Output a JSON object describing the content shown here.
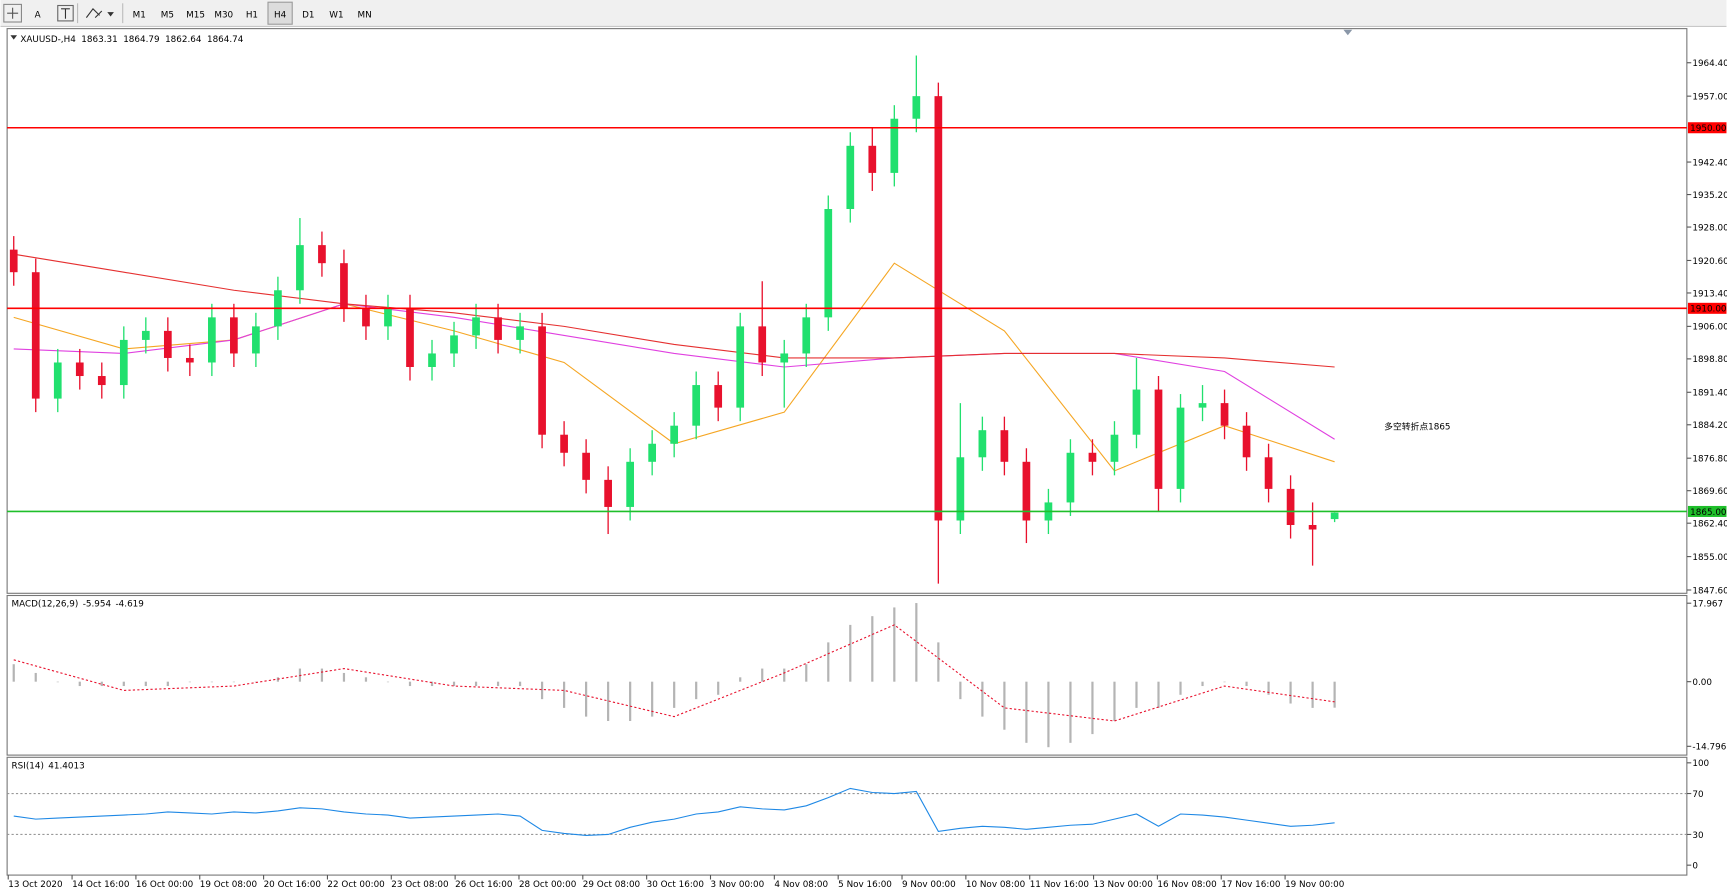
{
  "toolbar": {
    "tools": [
      "A"
    ],
    "timeframes": [
      "M1",
      "M5",
      "M15",
      "M30",
      "H1",
      "H4",
      "D1",
      "W1",
      "MN"
    ],
    "active": "H4"
  },
  "chart_data": [
    {
      "type": "candlestick",
      "symbol": "XAUUSD-,H4",
      "up_color": "#21e06e",
      "down_color": "#e8112d",
      "candles": [
        [
          1923,
          1926,
          1915,
          1918
        ],
        [
          1918,
          1921,
          1887,
          1890
        ],
        [
          1890,
          1901,
          1887,
          1898
        ],
        [
          1898,
          1901,
          1892,
          1895
        ],
        [
          1895,
          1898,
          1890,
          1893
        ],
        [
          1893,
          1906,
          1890,
          1903
        ],
        [
          1903,
          1908,
          1900,
          1905
        ],
        [
          1905,
          1908,
          1896,
          1899
        ],
        [
          1899,
          1902,
          1895,
          1898
        ],
        [
          1898,
          1911,
          1895,
          1908
        ],
        [
          1908,
          1911,
          1897,
          1900
        ],
        [
          1900,
          1909,
          1897,
          1906
        ],
        [
          1906,
          1917,
          1903,
          1914
        ],
        [
          1914,
          1930,
          1911,
          1924
        ],
        [
          1924,
          1927,
          1917,
          1920
        ],
        [
          1920,
          1923,
          1907,
          1910
        ],
        [
          1910,
          1913,
          1903,
          1906
        ],
        [
          1906,
          1913,
          1903,
          1910
        ],
        [
          1910,
          1913,
          1894,
          1897
        ],
        [
          1897,
          1903,
          1894,
          1900
        ],
        [
          1900,
          1907,
          1897,
          1904
        ],
        [
          1904,
          1911,
          1901,
          1908
        ],
        [
          1908,
          1911,
          1900,
          1903
        ],
        [
          1903,
          1909,
          1900,
          1906
        ],
        [
          1906,
          1909,
          1879,
          1882
        ],
        [
          1882,
          1885,
          1875,
          1878
        ],
        [
          1878,
          1881,
          1869,
          1872
        ],
        [
          1872,
          1875,
          1860,
          1866
        ],
        [
          1866,
          1879,
          1863,
          1876
        ],
        [
          1876,
          1883,
          1873,
          1880
        ],
        [
          1880,
          1887,
          1877,
          1884
        ],
        [
          1884,
          1896,
          1881,
          1893
        ],
        [
          1893,
          1896,
          1885,
          1888
        ],
        [
          1888,
          1909,
          1885,
          1906
        ],
        [
          1906,
          1916,
          1895,
          1898
        ],
        [
          1898,
          1903,
          1888,
          1900
        ],
        [
          1900,
          1911,
          1897,
          1908
        ],
        [
          1908,
          1935,
          1905,
          1932
        ],
        [
          1932,
          1949,
          1929,
          1946
        ],
        [
          1946,
          1950,
          1936,
          1940
        ],
        [
          1940,
          1955,
          1937,
          1952
        ],
        [
          1952,
          1966,
          1949,
          1957
        ],
        [
          1957,
          1960,
          1849,
          1863
        ],
        [
          1863,
          1889,
          1860,
          1877
        ],
        [
          1877,
          1886,
          1874,
          1883
        ],
        [
          1883,
          1886,
          1873,
          1876
        ],
        [
          1876,
          1879,
          1858,
          1863
        ],
        [
          1863,
          1870,
          1860,
          1867
        ],
        [
          1867,
          1881,
          1864,
          1878
        ],
        [
          1878,
          1881,
          1873,
          1876
        ],
        [
          1876,
          1885,
          1873,
          1882
        ],
        [
          1882,
          1899,
          1879,
          1892
        ],
        [
          1892,
          1895,
          1865,
          1870
        ],
        [
          1870,
          1891,
          1867,
          1888
        ],
        [
          1888,
          1893,
          1885,
          1889
        ],
        [
          1889,
          1892,
          1881,
          1884
        ],
        [
          1884,
          1887,
          1874,
          1877
        ],
        [
          1877,
          1880,
          1867,
          1870
        ],
        [
          1870,
          1873,
          1859,
          1862
        ],
        [
          1862,
          1867,
          1853,
          1861
        ],
        [
          1863.31,
          1864.79,
          1862.64,
          1864.74
        ]
      ],
      "moving_averages": [
        {
          "color": "#f5a623",
          "x": [
            0,
            5,
            10,
            15,
            20,
            25,
            30,
            35,
            40,
            45,
            50,
            55,
            60
          ],
          "values": [
            1908,
            1901,
            1903,
            1911,
            1905,
            1898,
            1880,
            1887,
            1920,
            1905,
            1874,
            1884,
            1876
          ]
        },
        {
          "color": "#e040e0",
          "x": [
            0,
            5,
            10,
            15,
            20,
            25,
            30,
            35,
            40,
            45,
            50,
            55,
            60
          ],
          "values": [
            1901,
            1900,
            1903,
            1911,
            1908,
            1904,
            1900,
            1897,
            1899,
            1900,
            1900,
            1896,
            1881
          ]
        },
        {
          "color": "#e53030",
          "x": [
            0,
            5,
            10,
            15,
            20,
            25,
            30,
            35,
            40,
            45,
            50,
            55,
            60
          ],
          "values": [
            1922,
            1918,
            1914,
            1911,
            1909,
            1906,
            1902,
            1899,
            1899,
            1900,
            1900,
            1899,
            1897
          ]
        }
      ],
      "levels": [
        {
          "value": 1950,
          "label": "1950.00",
          "color": "#ff0000"
        },
        {
          "value": 1910,
          "label": "1910.00",
          "color": "#ff0000"
        },
        {
          "value": 1865,
          "label": "1865.00",
          "color": "#1fbf2a"
        }
      ],
      "annotation": "多空转折点1865",
      "ylim": [
        1846.87,
        1971.96
      ],
      "yticks": [
        {
          "value": 1964.4,
          "label": "1964.40"
        },
        {
          "value": 1957,
          "label": "1957.00"
        },
        {
          "value": 1942.4,
          "label": "1942.40"
        },
        {
          "value": 1935.2,
          "label": "1935.20"
        },
        {
          "value": 1928,
          "label": "1928.00"
        },
        {
          "value": 1920.6,
          "label": "1920.60"
        },
        {
          "value": 1913.4,
          "label": "1913.40"
        },
        {
          "value": 1906,
          "label": "1906.00"
        },
        {
          "value": 1898.8,
          "label": "1898.80"
        },
        {
          "value": 1891.4,
          "label": "1891.40"
        },
        {
          "value": 1884.2,
          "label": "1884.20"
        },
        {
          "value": 1876.8,
          "label": "1876.80"
        },
        {
          "value": 1869.6,
          "label": "1869.60"
        },
        {
          "value": 1862.4,
          "label": "1862.40"
        },
        {
          "value": 1855,
          "label": "1855.00"
        },
        {
          "value": 1847.6,
          "label": "1847.60"
        }
      ]
    },
    {
      "type": "macd",
      "label": "MACD(12,26,9)",
      "histogram_color": "#b4b4b4",
      "signal_color": "#e8112d",
      "histogram": [
        4,
        2,
        0,
        -1,
        -1,
        -1,
        -1,
        -1,
        0,
        0,
        0,
        0,
        1,
        3,
        3,
        2,
        1,
        0,
        -1,
        -1,
        -1,
        -1,
        -1,
        -1,
        -4,
        -6,
        -8,
        -9,
        -9,
        -8,
        -6,
        -4,
        -3,
        1,
        3,
        3,
        4,
        9,
        13,
        15,
        17,
        18,
        9,
        -4,
        -8,
        -11,
        -14,
        -15,
        -14,
        -12,
        -9,
        -6,
        -6,
        -3,
        -1,
        0,
        -1,
        -3,
        -5,
        -6,
        -5.954
      ],
      "signal_x": [
        0,
        5,
        10,
        15,
        20,
        25,
        30,
        35,
        40,
        45,
        50,
        55,
        60
      ],
      "signal": [
        5,
        -2,
        -1,
        3,
        -1,
        -2,
        -8,
        2,
        13,
        -6,
        -9,
        -1,
        -4.619
      ],
      "ylim": [
        -16.81,
        19.73
      ],
      "yticks": [
        17.967,
        {
          "value": 0,
          "label": "0.00"
        },
        -14.796
      ]
    },
    {
      "type": "rsi",
      "label": "RSI(14)",
      "color": "#1e88e5",
      "values": [
        48,
        45,
        46,
        47,
        48,
        49,
        50,
        52,
        51,
        50,
        52,
        51,
        53,
        56,
        55,
        52,
        50,
        49,
        46,
        47,
        48,
        49,
        50,
        48,
        34,
        31,
        29,
        30,
        37,
        42,
        45,
        50,
        52,
        57,
        55,
        54,
        58,
        66,
        75,
        71,
        70,
        72,
        33,
        36,
        38,
        37,
        35,
        37,
        39,
        40,
        45,
        50,
        38,
        50,
        49,
        47,
        44,
        41,
        38,
        39,
        41.4013
      ],
      "levels": [
        70,
        30
      ],
      "ylim": [
        -9.7,
        105.4
      ],
      "yticks": [
        100,
        70,
        30,
        0
      ]
    }
  ],
  "time_axis": [
    "13 Oct 2020",
    "14 Oct 16:00",
    "16 Oct 00:00",
    "19 Oct 08:00",
    "20 Oct 16:00",
    "22 Oct 00:00",
    "23 Oct 08:00",
    "26 Oct 16:00",
    "28 Oct 00:00",
    "29 Oct 08:00",
    "30 Oct 16:00",
    "3 Nov 00:00",
    "4 Nov 08:00",
    "5 Nov 16:00",
    "9 Nov 00:00",
    "10 Nov 08:00",
    "11 Nov 16:00",
    "13 Nov 00:00",
    "16 Nov 08:00",
    "17 Nov 16:00",
    "19 Nov 00:00"
  ]
}
